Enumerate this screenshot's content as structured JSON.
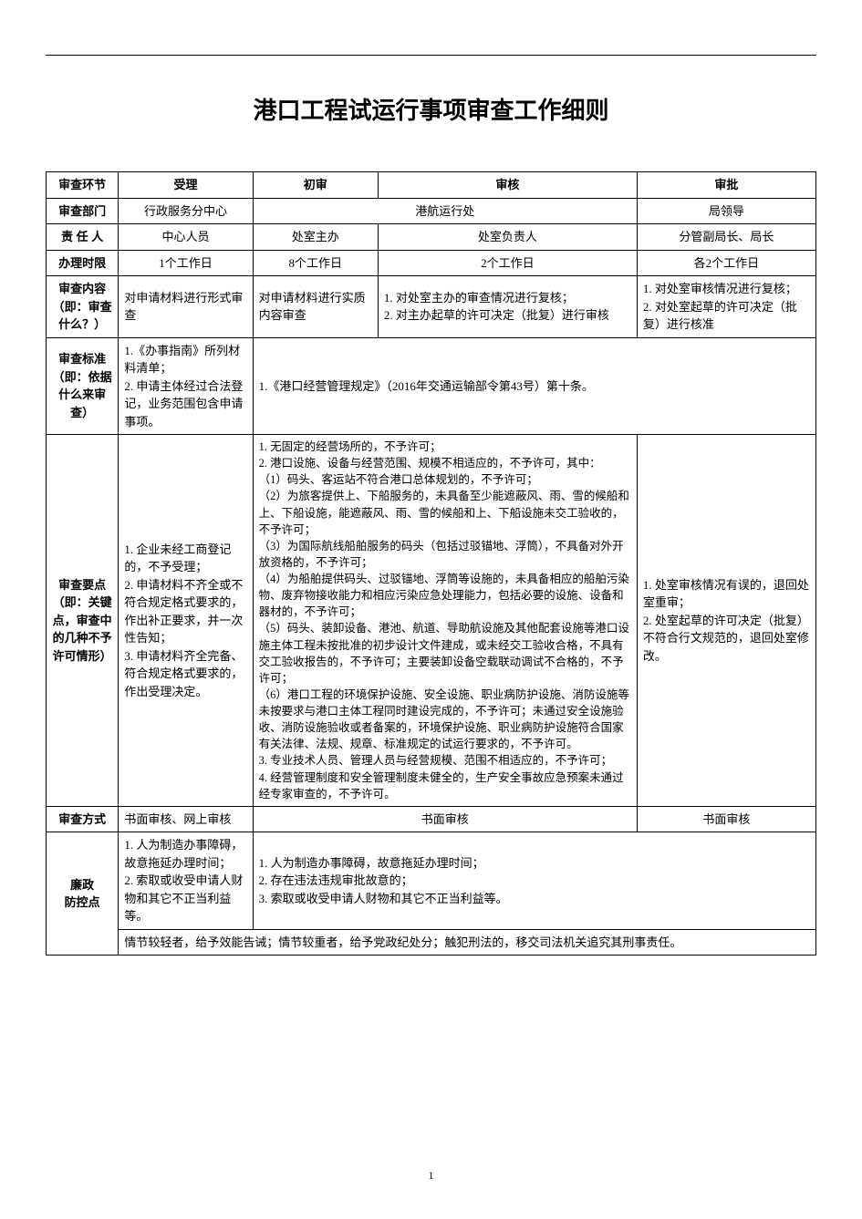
{
  "title": "港口工程试运行事项审查工作细则",
  "headers": {
    "stage": "审查环节",
    "accept": "受理",
    "initial": "初审",
    "review": "审核",
    "approve": "审批"
  },
  "rows": {
    "dept": {
      "label": "审查部门",
      "accept": "行政服务分中心",
      "middle": "港航运行处",
      "approve": "局领导"
    },
    "person": {
      "label": "责 任 人",
      "accept": "中心人员",
      "initial": "处室主办",
      "review": "处室负责人",
      "approve": "分管副局长、局长"
    },
    "time": {
      "label": "办理时限",
      "accept": "1个工作日",
      "initial": "8个工作日",
      "review": "2个工作日",
      "approve": "各2个工作日"
    },
    "content": {
      "label": "审查内容（即：审查什么？）",
      "accept": "对申请材料进行形式审查",
      "initial": "对申请材料进行实质内容审查",
      "review": "1. 对处室主办的审查情况进行复核；\n2. 对主办起草的许可决定（批复）进行审核",
      "approve": "1. 对处室审核情况进行复核；\n2. 对处室起草的许可决定（批复）进行核准"
    },
    "standard": {
      "label": "审查标准（即：依据什么来审查）",
      "accept": "1.《办事指南》所列材料清单；\n2. 申请主体经过合法登记，业务范围包含申请事项。",
      "merged": "1.《港口经营管理规定》（2016年交通运输部令第43号）第十条。"
    },
    "keypoints": {
      "label": "审查要点（即：关键点，审查中的几种不予许可情形）",
      "accept": "1. 企业未经工商登记的，不予受理；\n2. 申请材料不齐全或不符合规定格式要求的，作出补正要求，并一次性告知；\n3. 申请材料齐全完备、符合规定格式要求的，作出受理决定。",
      "middle": "1. 无固定的经营场所的，不予许可；\n2. 港口设施、设备与经营范围、规模不相适应的，不予许可，其中：\n（1）码头、客运站不符合港口总体规划的，不予许可；\n（2）为旅客提供上、下船服务的，未具备至少能遮蔽风、雨、雪的候船和上、下船设施，能遮蔽风、雨、雪的候船和上、下船设施未交工验收的，不予许可；\n（3）为国际航线船舶服务的码头（包括过驳锚地、浮筒），不具备对外开放资格的，不予许可；\n（4）为船舶提供码头、过驳锚地、浮筒等设施的，未具备相应的船舶污染物、废弃物接收能力和相应污染应急处理能力，包括必要的设施、设备和器材的，不予许可；\n（5）码头、装卸设备、港池、航道、导助航设施及其他配套设施等港口设施主体工程未按批准的初步设计文件建成，或未经交工验收合格，不具有交工验收报告的，不予许可；主要装卸设备空载联动调试不合格的，不予许可；\n（6）港口工程的环境保护设施、安全设施、职业病防护设施、消防设施等未按要求与港口主体工程同时建设完成的，不予许可；未通过安全设施验收、消防设施验收或者备案的，环境保护设施、职业病防护设施符合国家有关法律、法规、规章、标准规定的试运行要求的，不予许可。\n3. 专业技术人员、管理人员与经营规模、范围不相适应的，不予许可；\n4. 经营管理制度和安全管理制度未健全的，生产安全事故应急预案未通过经专家审查的，不予许可。",
      "approve": "1. 处室审核情况有误的，退回处室重审；\n2. 处室起草的许可决定（批复）不符合行文规范的，退回处室修改。"
    },
    "method": {
      "label": "审查方式",
      "accept": "书面审核、网上审核",
      "middle": "书面审核",
      "approve": "书面审核"
    },
    "integrity": {
      "label": "廉政\n防控点",
      "accept": "1. 人为制造办事障碍，故意拖延办理时间；\n2. 索取或收受申请人财物和其它不正当利益等。",
      "merged": "1. 人为制造办事障碍，故意拖延办理时间；\n2. 存在违法违规审批故意的；\n3. 索取或收受申请人财物和其它不正当利益等。",
      "bottom": "情节较轻者，给予效能告诫；情节较重者，给予党政纪处分；触犯刑法的，移交司法机关追究其刑事责任。"
    }
  },
  "page_number": "1",
  "colors": {
    "border": "#000000",
    "background": "#ffffff",
    "text": "#000000"
  },
  "typography": {
    "title_fontsize": 26,
    "body_fontsize": 13,
    "title_font": "SimHei",
    "body_font": "SimSun"
  }
}
